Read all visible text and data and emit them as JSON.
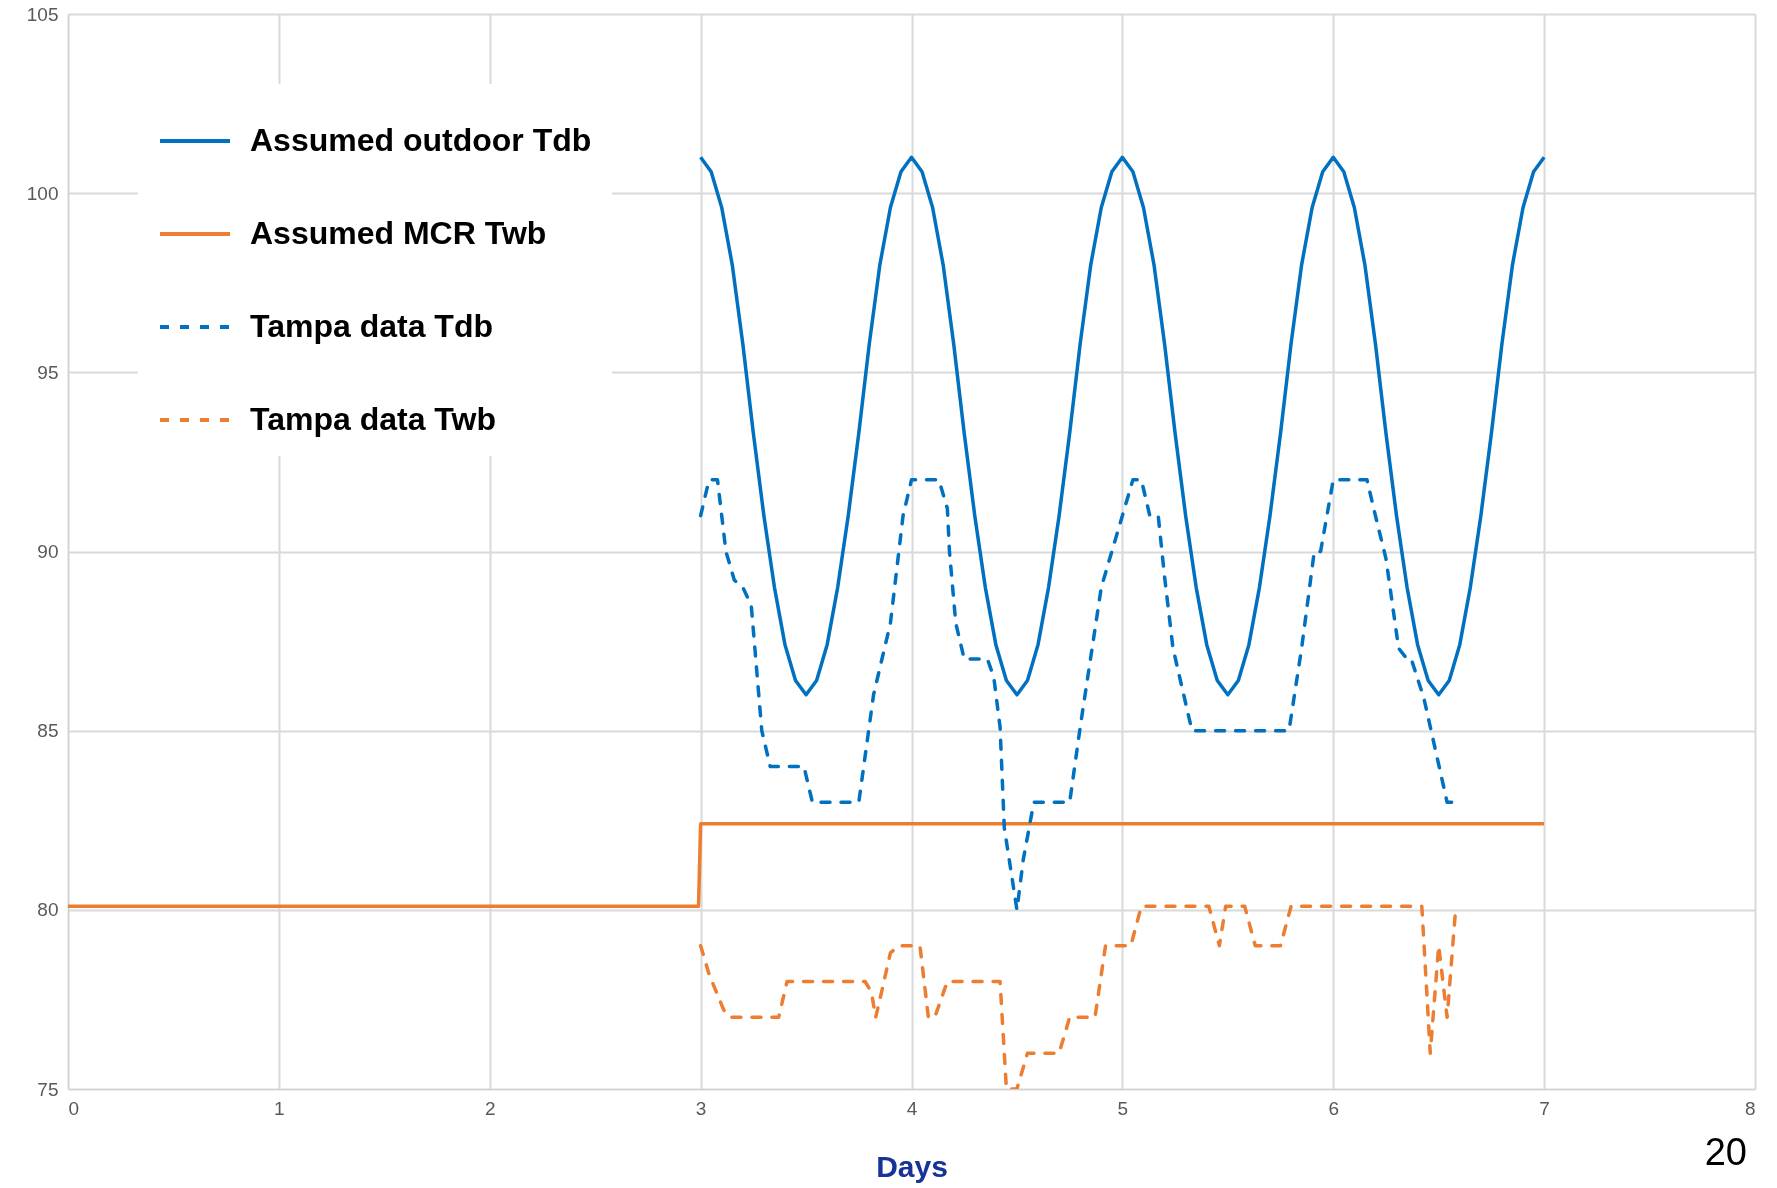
{
  "chart_data": {
    "type": "line",
    "xlabel": "Days",
    "xlim": [
      0,
      8
    ],
    "xticks": [
      0,
      1,
      2,
      3,
      4,
      5,
      6,
      7,
      8
    ],
    "ylim": [
      75,
      105
    ],
    "yticks": [
      75,
      80,
      85,
      90,
      95,
      100,
      105
    ],
    "grid": true,
    "legend": "top left",
    "annotations": [
      "20"
    ],
    "series": [
      {
        "name": "Assumed outdoor Tdb",
        "color": "#0070c0",
        "line_style": "solid",
        "x": [
          3,
          3.05,
          3.1,
          3.15,
          3.2,
          3.25,
          3.3,
          3.35,
          3.4,
          3.45,
          3.5,
          3.55,
          3.6,
          3.65,
          3.7,
          3.75,
          3.8,
          3.85,
          3.9,
          3.95,
          4,
          4.05,
          4.1,
          4.15,
          4.2,
          4.25,
          4.3,
          4.35,
          4.4,
          4.45,
          4.5,
          4.55,
          4.6,
          4.65,
          4.7,
          4.75,
          4.8,
          4.85,
          4.9,
          4.95,
          5,
          5.05,
          5.1,
          5.15,
          5.2,
          5.25,
          5.3,
          5.35,
          5.4,
          5.45,
          5.5,
          5.55,
          5.6,
          5.65,
          5.7,
          5.75,
          5.8,
          5.85,
          5.9,
          5.95,
          6,
          6.05,
          6.1,
          6.15,
          6.2,
          6.25,
          6.3,
          6.35,
          6.4,
          6.45,
          6.5,
          6.55,
          6.6,
          6.65,
          6.7,
          6.75,
          6.8,
          6.85,
          6.9,
          6.95,
          7
        ],
        "values": [
          101,
          100.6,
          99.6,
          98,
          95.8,
          93.3,
          91,
          89,
          87.4,
          86.4,
          86,
          86.4,
          87.4,
          89,
          91,
          93.3,
          95.8,
          98,
          99.6,
          100.6,
          101,
          100.6,
          99.6,
          98,
          95.8,
          93.3,
          91,
          89,
          87.4,
          86.4,
          86,
          86.4,
          87.4,
          89,
          91,
          93.3,
          95.8,
          98,
          99.6,
          100.6,
          101,
          100.6,
          99.6,
          98,
          95.8,
          93.3,
          91,
          89,
          87.4,
          86.4,
          86,
          86.4,
          87.4,
          89,
          91,
          93.3,
          95.8,
          98,
          99.6,
          100.6,
          101,
          100.6,
          99.6,
          98,
          95.8,
          93.3,
          91,
          89,
          87.4,
          86.4,
          86,
          86.4,
          87.4,
          89,
          91,
          93.3,
          95.8,
          98,
          99.6,
          100.6,
          101
        ]
      },
      {
        "name": "Assumed MCR Twb",
        "color": "#ed7d31",
        "line_style": "solid",
        "x": [
          0,
          2.99,
          3,
          7
        ],
        "values": [
          80.1,
          80.1,
          82.4,
          82.4
        ]
      },
      {
        "name": "Tampa data Tdb",
        "color": "#0070c0",
        "line_style": "dashed",
        "x": [
          3,
          3.04,
          3.08,
          3.12,
          3.16,
          3.2,
          3.24,
          3.29,
          3.33,
          3.49,
          3.53,
          3.75,
          3.82,
          3.9,
          3.96,
          4,
          4.13,
          4.17,
          4.18,
          4.21,
          4.25,
          4.36,
          4.39,
          4.42,
          4.44,
          4.5,
          4.53,
          4.58,
          4.75,
          4.8,
          4.9,
          4.95,
          5,
          5.05,
          5.09,
          5.13,
          5.17,
          5.2,
          5.24,
          5.33,
          5.79,
          5.85,
          5.91,
          5.94,
          6,
          6.16,
          6.2,
          6.25,
          6.31,
          6.35,
          6.37,
          6.43,
          6.54,
          6.57
        ],
        "values": [
          91,
          92,
          92,
          90,
          89.2,
          89,
          88.5,
          85,
          84,
          84,
          83,
          83,
          86,
          88,
          91,
          92,
          92,
          91.2,
          90,
          88,
          87,
          87,
          86.5,
          85.1,
          82.3,
          80,
          81.4,
          83,
          83,
          85.1,
          89,
          90,
          91,
          92,
          92,
          91,
          91,
          89.3,
          87.3,
          85,
          85,
          87.3,
          90,
          90,
          92,
          92,
          91,
          89.8,
          87.3,
          87,
          87,
          85.9,
          83,
          83
        ]
      },
      {
        "name": "Tampa data Twb",
        "color": "#ed7d31",
        "line_style": "dashed",
        "x": [
          3,
          3.04,
          3.11,
          3.14,
          3.37,
          3.41,
          3.78,
          3.81,
          3.83,
          3.85,
          3.9,
          3.94,
          4.04,
          4.08,
          4.11,
          4.17,
          4.38,
          4.42,
          4.45,
          4.5,
          4.55,
          4.7,
          4.75,
          4.87,
          4.92,
          5.04,
          5.09,
          5.41,
          5.46,
          5.49,
          5.58,
          5.63,
          5.75,
          5.8,
          6.42,
          6.46,
          6.5,
          6.54,
          6.58
        ],
        "values": [
          79,
          78.2,
          77.2,
          77,
          77,
          78,
          78,
          77.7,
          77,
          77.5,
          78.8,
          79,
          79,
          77,
          77,
          78,
          78,
          78,
          75,
          75,
          76,
          76,
          77,
          77,
          79,
          79,
          80.1,
          80.1,
          79,
          80.1,
          80.1,
          79,
          79,
          80.1,
          80.1,
          76,
          79,
          77,
          80
        ]
      }
    ]
  }
}
